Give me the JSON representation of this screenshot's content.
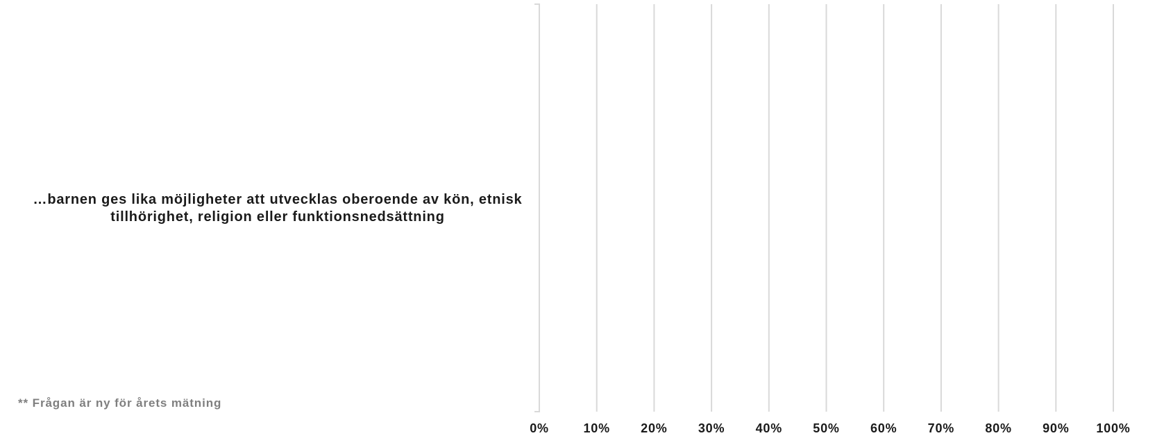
{
  "chart_data": {
    "type": "bar",
    "orientation": "horizontal",
    "categories": [
      "…barnen ges lika möjligheter att utvecklas oberoende av kön, etnisk tillhörighet, religion eller funktionsnedsättning"
    ],
    "category_lines": [
      "…barnen ges lika möjligheter att utvecklas oberoende av kön, etnisk",
      "tillhörighet, religion eller funktionsnedsättning"
    ],
    "series": [],
    "xlim": [
      0,
      100
    ],
    "x_ticks": [
      0,
      10,
      20,
      30,
      40,
      50,
      60,
      70,
      80,
      90,
      100
    ],
    "x_tick_labels": [
      "0%",
      "10%",
      "20%",
      "30%",
      "40%",
      "50%",
      "60%",
      "70%",
      "80%",
      "90%",
      "100%"
    ],
    "grid": "vertical",
    "legend": "none",
    "footnote": "** Frågan är ny för årets mätning",
    "colors": {
      "gridline": "#d9d9d9",
      "axis": "#d9d9d9",
      "text": "#1a1a1a",
      "footnote": "#7f7f7f"
    }
  }
}
